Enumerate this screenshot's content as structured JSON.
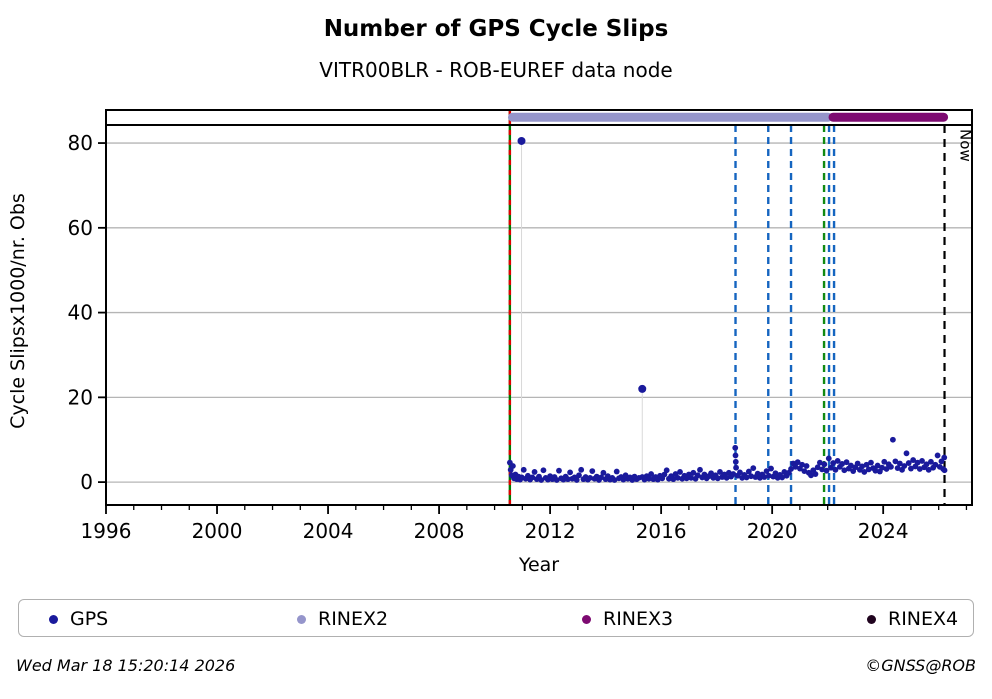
{
  "title": "Number of GPS Cycle Slips",
  "subtitle": "VITR00BLR - ROB-EUREF data node",
  "footer": {
    "timestamp": "Wed Mar 18 15:20:14 2026",
    "credit": "©GNSS@ROB"
  },
  "legend": [
    {
      "label": "GPS",
      "color": "#1a1a9c"
    },
    {
      "label": "RINEX2",
      "color": "#9595cb"
    },
    {
      "label": "RINEX3",
      "color": "#7d0a71"
    },
    {
      "label": "RINEX4",
      "color": "#20041f"
    }
  ],
  "chart_data": {
    "type": "scatter",
    "title": "Number of GPS Cycle Slips",
    "subtitle": "VITR00BLR - ROB-EUREF data node",
    "xlabel": "Year",
    "ylabel": "Cycle Slipsx1000/nr. Obs",
    "xlim": [
      1996,
      2027.2
    ],
    "ylim": [
      -5.4,
      87.8
    ],
    "xticks_major": [
      1996,
      2000,
      2004,
      2008,
      2012,
      2016,
      2020,
      2024
    ],
    "xticks_minor_step": 1,
    "yticks": [
      0,
      20,
      40,
      60,
      80
    ],
    "grid": "horizontal",
    "grid_color": "#b5b5b5",
    "point_color": "#1a1a9c",
    "hline_y": 84.25,
    "now": {
      "year": 2026.21,
      "label": "Now"
    },
    "bars": [
      {
        "name": "RINEX2",
        "start": 2010.5,
        "end": 2022.16,
        "color": "#9595cb",
        "y": 86.1
      },
      {
        "name": "RINEX3",
        "start": 2022.05,
        "end": 2026.32,
        "color": "#7d0a71",
        "y": 86.1
      }
    ],
    "vlines": [
      {
        "year": 2010.55,
        "style": "solid",
        "color": "#007b00",
        "overlay": "#e00000",
        "from": "top"
      },
      {
        "year": 2018.68,
        "style": "dashed",
        "color": "#1565c0",
        "from": "hline"
      },
      {
        "year": 2019.86,
        "style": "dashed",
        "color": "#1565c0",
        "from": "hline"
      },
      {
        "year": 2020.68,
        "style": "dashed",
        "color": "#1565c0",
        "from": "hline"
      },
      {
        "year": 2021.87,
        "style": "dashed",
        "color": "#128a12",
        "from": "hline"
      },
      {
        "year": 2022.05,
        "style": "dashed",
        "color": "#1565c0",
        "from": "hline"
      },
      {
        "year": 2022.23,
        "style": "dashed",
        "color": "#1565c0",
        "from": "hline"
      }
    ],
    "outliers": [
      [
        2010.97,
        80.5
      ],
      [
        2015.32,
        22.0
      ]
    ],
    "stem_color": "#d9d9d9",
    "points": [
      [
        2010.55,
        4.6
      ],
      [
        2010.58,
        2.9
      ],
      [
        2010.62,
        1.6
      ],
      [
        2010.66,
        3.8
      ],
      [
        2010.7,
        0.9
      ],
      [
        2010.75,
        1.8
      ],
      [
        2010.8,
        0.7
      ],
      [
        2010.86,
        1.3
      ],
      [
        2010.92,
        0.6
      ],
      [
        2010.98,
        1.1
      ],
      [
        2011.05,
        2.9
      ],
      [
        2011.12,
        0.8
      ],
      [
        2011.2,
        1.5
      ],
      [
        2011.28,
        0.6
      ],
      [
        2011.36,
        1.1
      ],
      [
        2011.44,
        2.4
      ],
      [
        2011.52,
        0.7
      ],
      [
        2011.6,
        1.3
      ],
      [
        2011.68,
        0.5
      ],
      [
        2011.76,
        2.8
      ],
      [
        2011.84,
        1.0
      ],
      [
        2011.92,
        0.6
      ],
      [
        2012.0,
        1.4
      ],
      [
        2012.08,
        0.7
      ],
      [
        2012.16,
        1.2
      ],
      [
        2012.24,
        0.5
      ],
      [
        2012.32,
        2.7
      ],
      [
        2012.4,
        0.9
      ],
      [
        2012.48,
        0.6
      ],
      [
        2012.56,
        1.3
      ],
      [
        2012.64,
        0.7
      ],
      [
        2012.72,
        2.3
      ],
      [
        2012.8,
        0.8
      ],
      [
        2012.88,
        1.1
      ],
      [
        2012.96,
        0.5
      ],
      [
        2013.04,
        1.6
      ],
      [
        2013.12,
        2.9
      ],
      [
        2013.2,
        0.7
      ],
      [
        2013.28,
        1.2
      ],
      [
        2013.36,
        0.6
      ],
      [
        2013.44,
        1.0
      ],
      [
        2013.52,
        2.6
      ],
      [
        2013.6,
        0.8
      ],
      [
        2013.68,
        1.3
      ],
      [
        2013.76,
        0.5
      ],
      [
        2013.84,
        1.1
      ],
      [
        2013.92,
        2.2
      ],
      [
        2014.0,
        0.7
      ],
      [
        2014.08,
        1.4
      ],
      [
        2014.16,
        0.6
      ],
      [
        2014.24,
        1.0
      ],
      [
        2014.32,
        0.5
      ],
      [
        2014.4,
        2.5
      ],
      [
        2014.48,
        0.9
      ],
      [
        2014.56,
        1.2
      ],
      [
        2014.64,
        0.6
      ],
      [
        2014.72,
        1.6
      ],
      [
        2014.8,
        0.8
      ],
      [
        2014.88,
        1.1
      ],
      [
        2014.96,
        0.5
      ],
      [
        2015.04,
        1.3
      ],
      [
        2015.12,
        0.7
      ],
      [
        2015.2,
        1.0
      ],
      [
        2015.32,
        1.2
      ],
      [
        2015.4,
        0.6
      ],
      [
        2015.48,
        1.4
      ],
      [
        2015.56,
        0.8
      ],
      [
        2015.64,
        1.9
      ],
      [
        2015.72,
        0.7
      ],
      [
        2015.8,
        1.2
      ],
      [
        2015.88,
        0.6
      ],
      [
        2015.96,
        1.5
      ],
      [
        2016.04,
        0.9
      ],
      [
        2016.12,
        1.8
      ],
      [
        2016.2,
        2.8
      ],
      [
        2016.28,
        0.8
      ],
      [
        2016.36,
        1.4
      ],
      [
        2016.44,
        0.7
      ],
      [
        2016.52,
        1.9
      ],
      [
        2016.6,
        1.0
      ],
      [
        2016.68,
        2.4
      ],
      [
        2016.76,
        0.8
      ],
      [
        2016.84,
        1.5
      ],
      [
        2016.92,
        0.9
      ],
      [
        2017.0,
        1.8
      ],
      [
        2017.08,
        1.0
      ],
      [
        2017.16,
        2.2
      ],
      [
        2017.24,
        0.8
      ],
      [
        2017.32,
        1.6
      ],
      [
        2017.4,
        2.9
      ],
      [
        2017.48,
        1.1
      ],
      [
        2017.56,
        1.8
      ],
      [
        2017.64,
        0.9
      ],
      [
        2017.72,
        1.4
      ],
      [
        2017.8,
        2.1
      ],
      [
        2017.88,
        1.0
      ],
      [
        2017.96,
        1.6
      ],
      [
        2018.04,
        0.9
      ],
      [
        2018.12,
        2.4
      ],
      [
        2018.2,
        1.2
      ],
      [
        2018.28,
        1.8
      ],
      [
        2018.36,
        1.0
      ],
      [
        2018.44,
        2.2
      ],
      [
        2018.52,
        1.3
      ],
      [
        2018.6,
        1.9
      ],
      [
        2018.67,
        8.1
      ],
      [
        2018.68,
        6.3
      ],
      [
        2018.69,
        4.8
      ],
      [
        2018.7,
        3.4
      ],
      [
        2018.76,
        1.5
      ],
      [
        2018.84,
        2.3
      ],
      [
        2018.92,
        1.0
      ],
      [
        2019.0,
        1.7
      ],
      [
        2019.08,
        1.1
      ],
      [
        2019.16,
        2.5
      ],
      [
        2019.24,
        1.4
      ],
      [
        2019.32,
        3.3
      ],
      [
        2019.4,
        1.2
      ],
      [
        2019.48,
        2.0
      ],
      [
        2019.56,
        1.0
      ],
      [
        2019.64,
        1.8
      ],
      [
        2019.72,
        1.2
      ],
      [
        2019.8,
        2.6
      ],
      [
        2019.88,
        1.5
      ],
      [
        2019.96,
        3.2
      ],
      [
        2020.04,
        1.3
      ],
      [
        2020.12,
        2.1
      ],
      [
        2020.2,
        1.0
      ],
      [
        2020.28,
        1.7
      ],
      [
        2020.36,
        1.1
      ],
      [
        2020.44,
        2.4
      ],
      [
        2020.52,
        1.5
      ],
      [
        2020.6,
        2.2
      ],
      [
        2020.68,
        3.1
      ],
      [
        2020.76,
        4.4
      ],
      [
        2020.84,
        3.6
      ],
      [
        2020.92,
        4.7
      ],
      [
        2021.0,
        3.2
      ],
      [
        2021.08,
        4.1
      ],
      [
        2021.16,
        2.6
      ],
      [
        2021.24,
        3.8
      ],
      [
        2021.32,
        2.2
      ],
      [
        2021.4,
        1.6
      ],
      [
        2021.48,
        2.8
      ],
      [
        2021.56,
        1.9
      ],
      [
        2021.64,
        3.5
      ],
      [
        2021.72,
        4.6
      ],
      [
        2021.8,
        3.0
      ],
      [
        2021.88,
        4.2
      ],
      [
        2021.96,
        2.7
      ],
      [
        2022.04,
        5.6
      ],
      [
        2022.12,
        3.4
      ],
      [
        2022.2,
        4.5
      ],
      [
        2022.28,
        2.9
      ],
      [
        2022.36,
        5.0
      ],
      [
        2022.44,
        3.6
      ],
      [
        2022.52,
        4.3
      ],
      [
        2022.6,
        2.8
      ],
      [
        2022.68,
        4.7
      ],
      [
        2022.76,
        3.2
      ],
      [
        2022.84,
        3.9
      ],
      [
        2022.92,
        2.6
      ],
      [
        2023.0,
        3.5
      ],
      [
        2023.08,
        4.4
      ],
      [
        2023.16,
        2.9
      ],
      [
        2023.24,
        3.7
      ],
      [
        2023.32,
        2.4
      ],
      [
        2023.4,
        4.1
      ],
      [
        2023.48,
        3.0
      ],
      [
        2023.56,
        4.6
      ],
      [
        2023.64,
        3.3
      ],
      [
        2023.72,
        2.7
      ],
      [
        2023.8,
        3.9
      ],
      [
        2023.88,
        2.5
      ],
      [
        2023.96,
        3.4
      ],
      [
        2024.04,
        4.8
      ],
      [
        2024.12,
        3.1
      ],
      [
        2024.2,
        4.2
      ],
      [
        2024.28,
        3.6
      ],
      [
        2024.35,
        10.0
      ],
      [
        2024.44,
        4.9
      ],
      [
        2024.52,
        3.3
      ],
      [
        2024.6,
        4.4
      ],
      [
        2024.68,
        2.9
      ],
      [
        2024.76,
        3.8
      ],
      [
        2024.84,
        6.8
      ],
      [
        2024.92,
        4.5
      ],
      [
        2025.0,
        3.2
      ],
      [
        2025.08,
        5.2
      ],
      [
        2025.16,
        3.7
      ],
      [
        2025.24,
        4.6
      ],
      [
        2025.32,
        3.1
      ],
      [
        2025.4,
        5.0
      ],
      [
        2025.48,
        3.5
      ],
      [
        2025.56,
        4.2
      ],
      [
        2025.64,
        2.9
      ],
      [
        2025.72,
        4.8
      ],
      [
        2025.8,
        3.4
      ],
      [
        2025.88,
        4.1
      ],
      [
        2025.96,
        6.3
      ],
      [
        2026.04,
        3.6
      ],
      [
        2026.1,
        4.9
      ],
      [
        2026.16,
        3.1
      ],
      [
        2026.2,
        5.8
      ],
      [
        2026.21,
        2.8
      ]
    ]
  }
}
